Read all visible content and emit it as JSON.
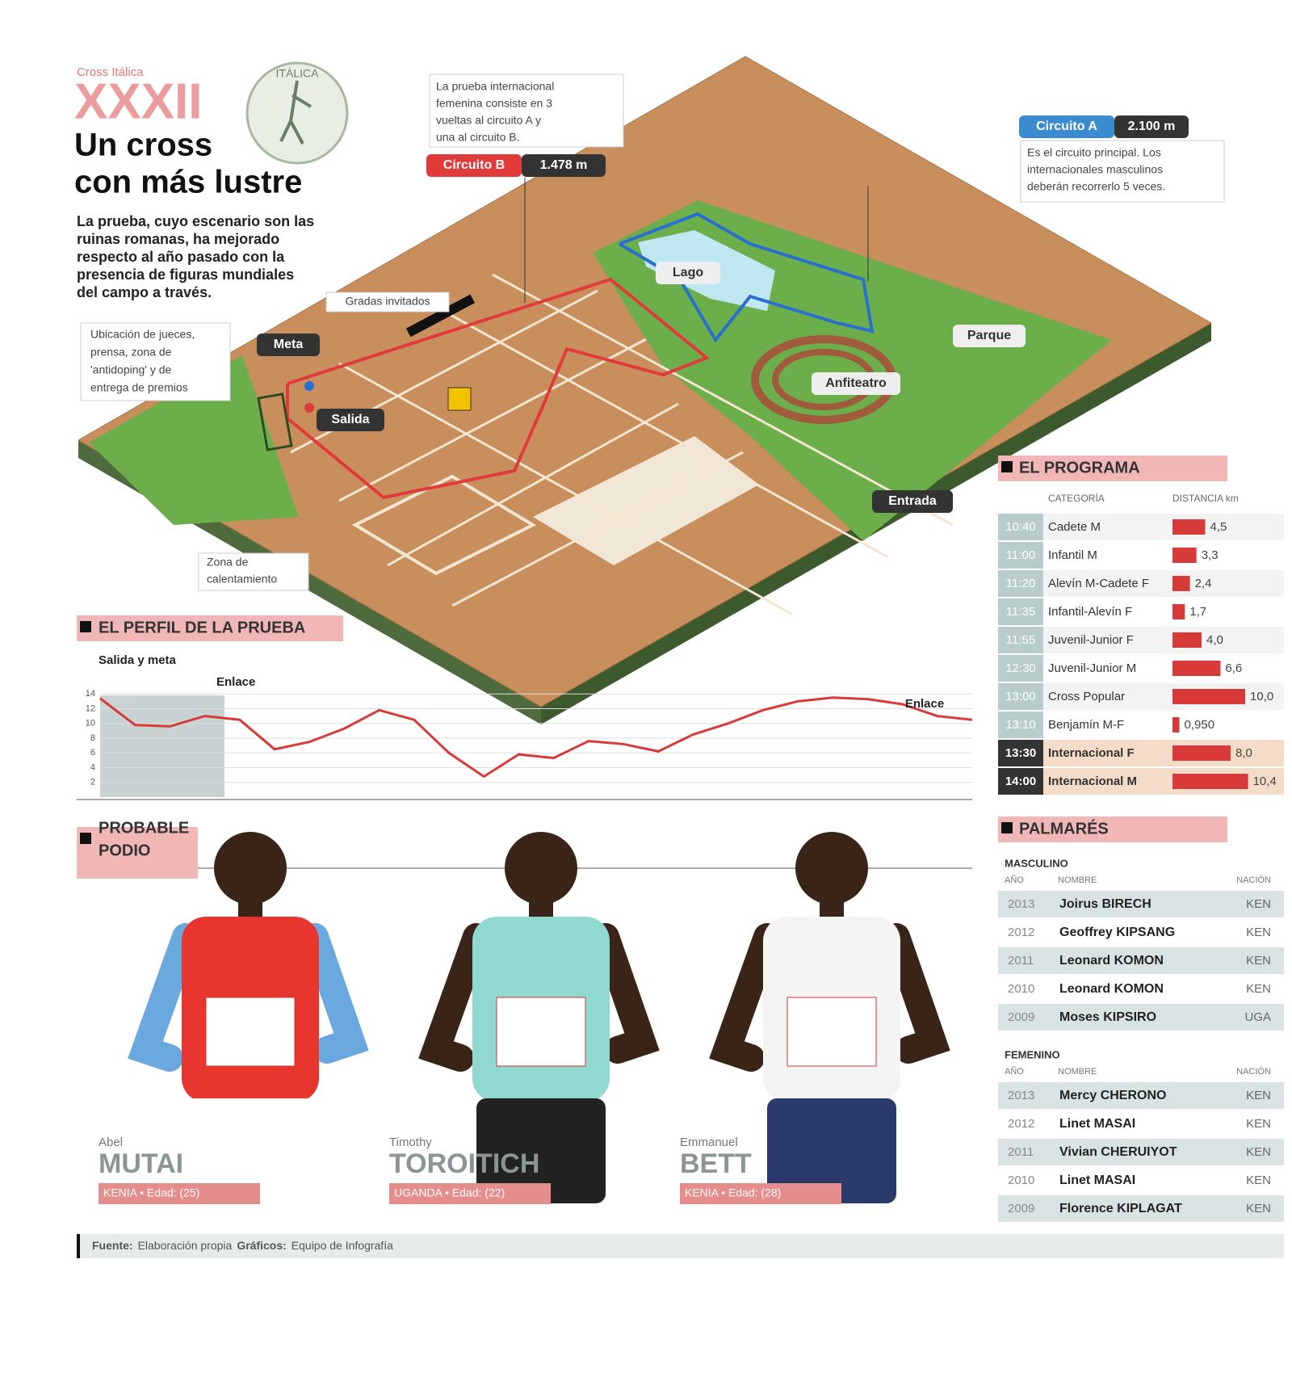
{
  "header": {
    "kicker": "Cross Itálica",
    "edition": "XXXII",
    "logo_text": "ITÁLICA",
    "title_lines": [
      "Un cross",
      "con más lustre"
    ],
    "intro_lines": [
      "La prueba, cuyo escenario son las",
      "ruinas romanas, ha mejorado",
      "respecto al año pasado con la",
      "presencia de figuras mundiales",
      "del campo a través."
    ]
  },
  "map": {
    "circuit_b": {
      "name": "Circuito B",
      "length": "1.478 m",
      "note_lines": [
        "La prueba internacional",
        "femenina consiste en 3",
        "vueltas al circuito A y",
        "una al circuito B."
      ]
    },
    "circuit_a": {
      "name": "Circuito A",
      "length": "2.100 m",
      "note_lines": [
        "Es el circuito principal. Los",
        "internacionales masculinos",
        "deberán recorrerlo 5 veces."
      ]
    },
    "labels": {
      "lake": "Lago",
      "park": "Parque",
      "amphitheater": "Anfiteatro",
      "finish": "Meta",
      "start": "Salida",
      "entrance": "Entrada",
      "stands": "Gradas invitados",
      "warmup_lines": [
        "Zona de",
        "calentamiento"
      ]
    },
    "officials_note_lines": [
      "Ubicación de jueces,",
      "prensa, zona de",
      "'antidoping' y de",
      "entrega de premios"
    ]
  },
  "profile_heading": "EL PERFIL DE LA PRUEBA",
  "chart_data": {
    "type": "line",
    "annotations": [
      "Salida y meta",
      "Enlace",
      "Enlace"
    ],
    "categories": [
      null,
      null,
      null,
      null,
      null,
      null,
      null,
      null,
      null,
      null,
      null,
      null,
      null,
      null,
      null,
      null,
      null,
      null,
      null,
      null,
      null,
      null,
      null,
      null,
      null,
      null
    ],
    "values": [
      13.4,
      9.8,
      9.6,
      11,
      10.5,
      6.5,
      7.5,
      9.3,
      11.8,
      10.5,
      6,
      2.8,
      5.8,
      5.3,
      7.6,
      7.2,
      6.2,
      8.5,
      10,
      11.8,
      13,
      13.5,
      13.3,
      12.6,
      11,
      10.5
    ],
    "color": "#d83a3a",
    "ylim": [
      0,
      16
    ],
    "yticks": [
      2,
      4,
      6,
      8,
      10,
      12,
      14
    ],
    "grid": true
  },
  "program": {
    "heading": "EL PROGRAMA",
    "columns": [
      "CATEGORÍA",
      "DISTANCIA km"
    ],
    "rows": [
      {
        "time": "10:40",
        "category": "Cadete M",
        "distance": 4.5,
        "distance_label": "4,5"
      },
      {
        "time": "11:00",
        "category": "Infantil M",
        "distance": 3.3,
        "distance_label": "3,3"
      },
      {
        "time": "11:20",
        "category": "Alevín M-Cadete F",
        "distance": 2.4,
        "distance_label": "2,4"
      },
      {
        "time": "11:35",
        "category": "Infantil-Alevín F",
        "distance": 1.7,
        "distance_label": "1,7"
      },
      {
        "time": "11:55",
        "category": "Juvenil-Junior F",
        "distance": 4.0,
        "distance_label": "4,0"
      },
      {
        "time": "12:30",
        "category": "Juvenil-Junior M",
        "distance": 6.6,
        "distance_label": "6,6"
      },
      {
        "time": "13:00",
        "category": "Cross Popular",
        "distance": 10.0,
        "distance_label": "10,0"
      },
      {
        "time": "13:10",
        "category": "Benjamín M-F",
        "distance": 0.95,
        "distance_label": "0,950"
      },
      {
        "time": "13:30",
        "category": "Internacional F",
        "distance": 8.0,
        "distance_label": "8,0"
      },
      {
        "time": "14:00",
        "category": "Internacional M",
        "distance": 10.4,
        "distance_label": "10,4"
      }
    ]
  },
  "podium": {
    "heading_lines": [
      "PROBABLE",
      "PODIO"
    ],
    "athletes": [
      {
        "first_name": "Abel",
        "last_name": "MUTAI",
        "info": "KENIA • Edad: (25)"
      },
      {
        "first_name": "Timothy",
        "last_name": "TOROITICH",
        "info": "UGANDA • Edad: (22)"
      },
      {
        "first_name": "Emmanuel",
        "last_name": "BETT",
        "info": "KENIA • Edad: (28)"
      }
    ]
  },
  "palmares": {
    "heading": "PALMARÉS",
    "columns": [
      "AÑO",
      "NOMBRE",
      "NACIÓN"
    ],
    "groups": [
      {
        "title": "MASCULINO",
        "rows": [
          [
            "2013",
            "Joirus BIRECH",
            "KEN"
          ],
          [
            "2012",
            "Geoffrey KIPSANG",
            "KEN"
          ],
          [
            "2011",
            "Leonard KOMON",
            "KEN"
          ],
          [
            "2010",
            "Leonard KOMON",
            "KEN"
          ],
          [
            "2009",
            "Moses KIPSIRO",
            "UGA"
          ]
        ]
      },
      {
        "title": "FEMENINO",
        "rows": [
          [
            "2013",
            "Mercy CHERONO",
            "KEN"
          ],
          [
            "2012",
            "Linet MASAI",
            "KEN"
          ],
          [
            "2011",
            "Vivian CHERUIYOT",
            "KEN"
          ],
          [
            "2010",
            "Linet MASAI",
            "KEN"
          ],
          [
            "2009",
            "Florence KIPLAGAT",
            "KEN"
          ]
        ]
      }
    ]
  },
  "footer": {
    "source_label": "Fuente:",
    "source": "Elaboración propia",
    "graphics_label": "Gráficos:",
    "graphics": "Equipo de Infografía"
  }
}
